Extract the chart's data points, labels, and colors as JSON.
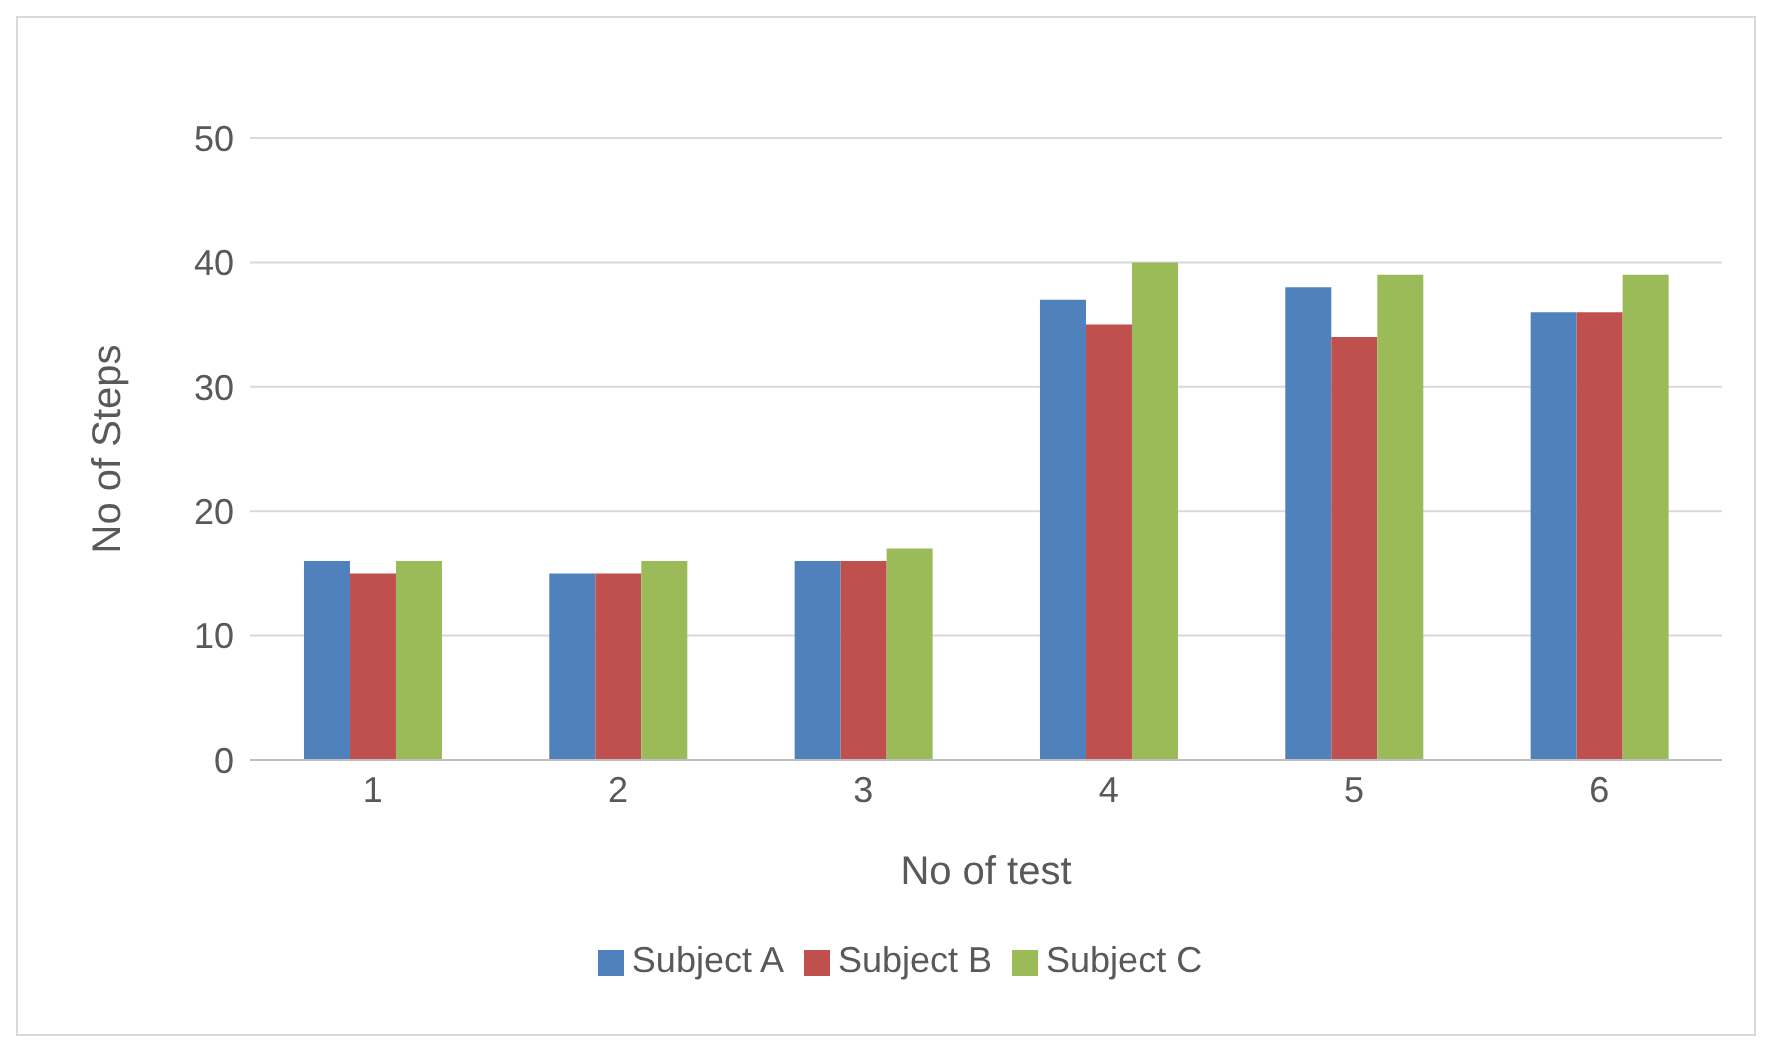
{
  "chart_data": {
    "type": "bar",
    "xlabel": "No of test",
    "ylabel": "No of Steps",
    "categories": [
      "1",
      "2",
      "3",
      "4",
      "5",
      "6"
    ],
    "series": [
      {
        "name": "Subject A",
        "color": "#4f81bd",
        "values": [
          16,
          15,
          16,
          37,
          38,
          36
        ]
      },
      {
        "name": "Subject B",
        "color": "#c0504d",
        "values": [
          15,
          15,
          16,
          35,
          34,
          36
        ]
      },
      {
        "name": "Subject C",
        "color": "#9bbb59",
        "values": [
          16,
          16,
          17,
          40,
          39,
          39
        ]
      }
    ],
    "ylim": [
      0,
      50
    ],
    "yticks": [
      0,
      10,
      20,
      30,
      40,
      50
    ],
    "grid": "y",
    "legend": "bottom"
  }
}
